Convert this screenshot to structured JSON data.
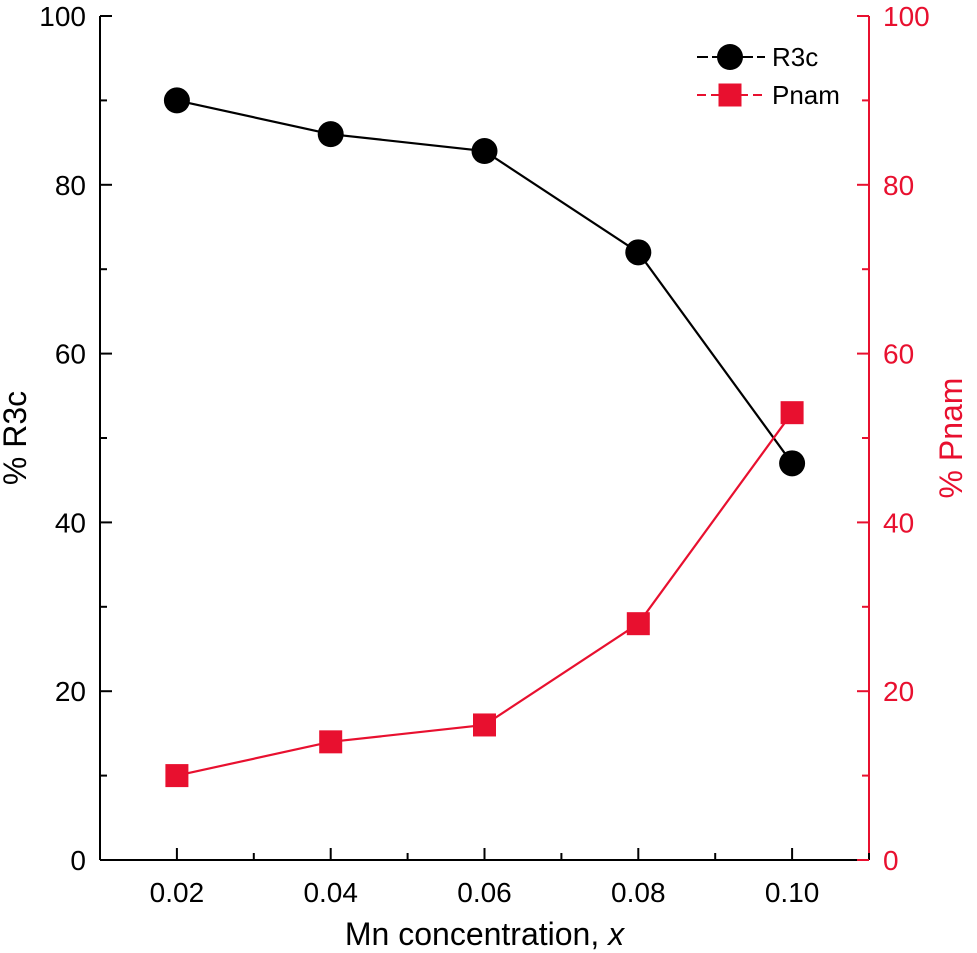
{
  "chart_data": {
    "type": "line",
    "title": "",
    "xlabel": "Mn concentration, ",
    "xlabel_italic": "x",
    "ylabel_left": "% R3c",
    "ylabel_right": "% Pnam",
    "xlim": [
      0.01,
      0.11
    ],
    "ylim_left": [
      0,
      100
    ],
    "ylim_right": [
      0,
      100
    ],
    "x_ticks": [
      0.02,
      0.04,
      0.06,
      0.08,
      0.1
    ],
    "x_tick_labels": [
      "0.02",
      "0.04",
      "0.06",
      "0.08",
      "0.10"
    ],
    "y_ticks": [
      0,
      20,
      40,
      60,
      80,
      100
    ],
    "y_tick_labels": [
      "0",
      "20",
      "40",
      "60",
      "80",
      "100"
    ],
    "grid": false,
    "legend_position": "top-right",
    "series": [
      {
        "name": "R3c",
        "axis": "left",
        "marker": "circle",
        "color": "#000000",
        "x": [
          0.02,
          0.04,
          0.06,
          0.08,
          0.1
        ],
        "values": [
          90,
          86,
          84,
          72,
          47
        ]
      },
      {
        "name": "Pnam",
        "axis": "right",
        "marker": "square",
        "color": "#e8102f",
        "x": [
          0.02,
          0.04,
          0.06,
          0.08,
          0.1
        ],
        "values": [
          10,
          14,
          16,
          28,
          53
        ]
      }
    ]
  }
}
